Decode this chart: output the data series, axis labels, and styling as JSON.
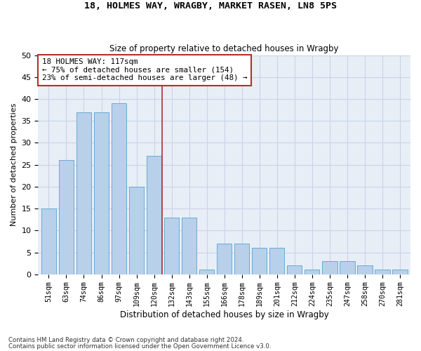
{
  "title1": "18, HOLMES WAY, WRAGBY, MARKET RASEN, LN8 5PS",
  "title2": "Size of property relative to detached houses in Wragby",
  "xlabel": "Distribution of detached houses by size in Wragby",
  "ylabel": "Number of detached properties",
  "categories": [
    "51sqm",
    "63sqm",
    "74sqm",
    "86sqm",
    "97sqm",
    "109sqm",
    "120sqm",
    "132sqm",
    "143sqm",
    "155sqm",
    "166sqm",
    "178sqm",
    "189sqm",
    "201sqm",
    "212sqm",
    "224sqm",
    "235sqm",
    "247sqm",
    "258sqm",
    "270sqm",
    "281sqm"
  ],
  "values": [
    15,
    26,
    37,
    37,
    39,
    20,
    27,
    13,
    13,
    1,
    7,
    7,
    6,
    6,
    2,
    1,
    3,
    3,
    2,
    1,
    1
  ],
  "bar_color": "#b8d0ea",
  "bar_edge_color": "#6aaad4",
  "grid_color": "#c8d4e8",
  "background_color": "#e8eef6",
  "vline_x": 6.45,
  "vline_color": "#b03030",
  "annotation_text": "18 HOLMES WAY: 117sqm\n← 75% of detached houses are smaller (154)\n23% of semi-detached houses are larger (48) →",
  "annotation_box_facecolor": "#ffffff",
  "annotation_box_edge": "#b03030",
  "ylim": [
    0,
    50
  ],
  "yticks": [
    0,
    5,
    10,
    15,
    20,
    25,
    30,
    35,
    40,
    45,
    50
  ],
  "footnote1": "Contains HM Land Registry data © Crown copyright and database right 2024.",
  "footnote2": "Contains public sector information licensed under the Open Government Licence v3.0."
}
